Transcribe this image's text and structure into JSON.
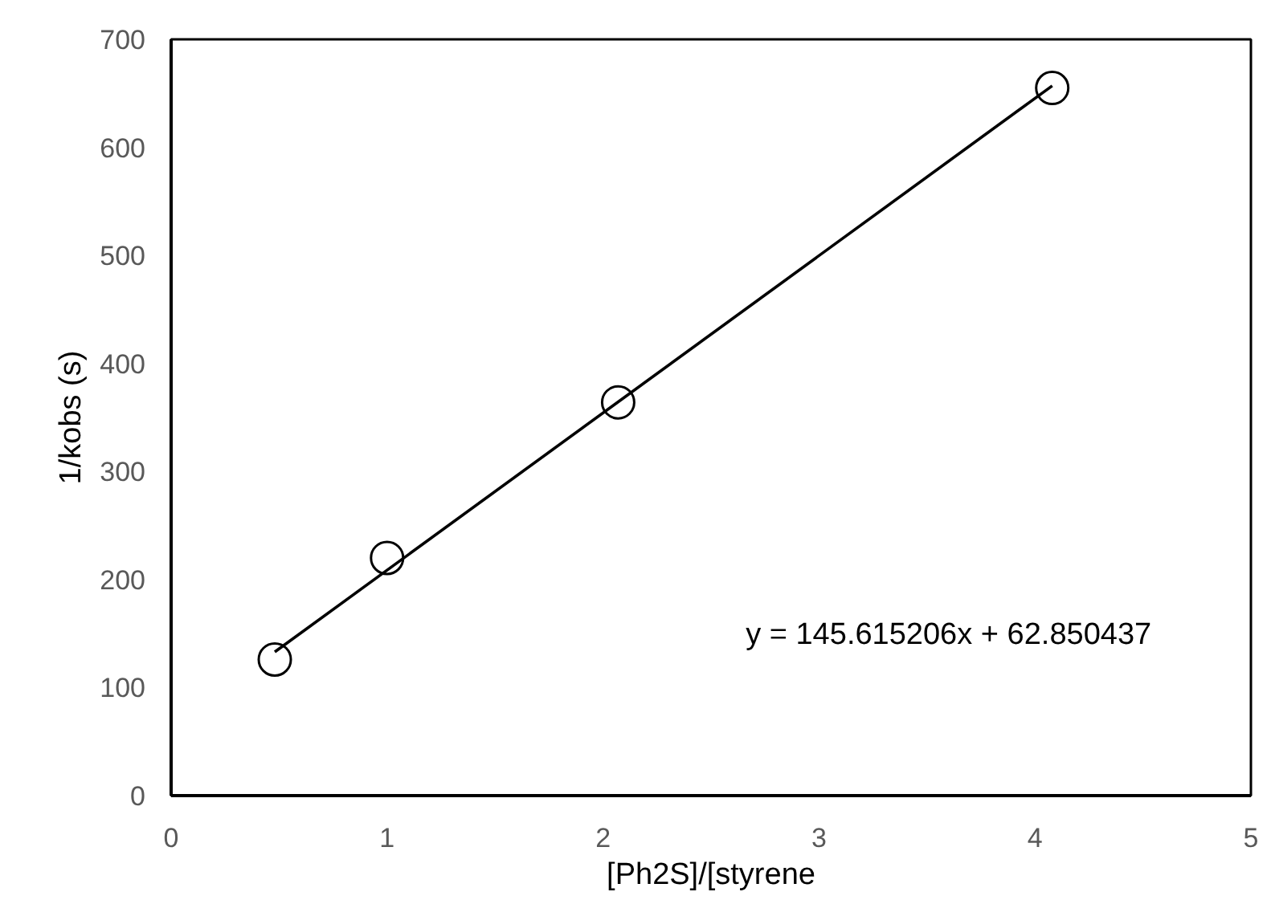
{
  "chart_data": {
    "type": "scatter",
    "xlabel": "[Ph2S]/[styrene",
    "ylabel": "1/kobs (s)",
    "xlim": [
      0,
      5
    ],
    "xticks": [
      0,
      1,
      2,
      3,
      4,
      5
    ],
    "ylim": [
      0,
      700
    ],
    "yticks": [
      0,
      100,
      200,
      300,
      400,
      500,
      600,
      700
    ],
    "grid": false,
    "series": [
      {
        "marker": "circle",
        "color": "#000000",
        "x": [
          0.48,
          1.0,
          2.07,
          4.08
        ],
        "values": [
          126,
          220,
          364,
          655
        ]
      },
      {
        "type": "line",
        "marker": "none",
        "line_style": "solid",
        "color": "#000000",
        "x": [
          0.48,
          4.08
        ],
        "values": [
          133,
          657
        ]
      }
    ],
    "annotations": [
      "y = 145.615206x + 62.850437"
    ]
  }
}
